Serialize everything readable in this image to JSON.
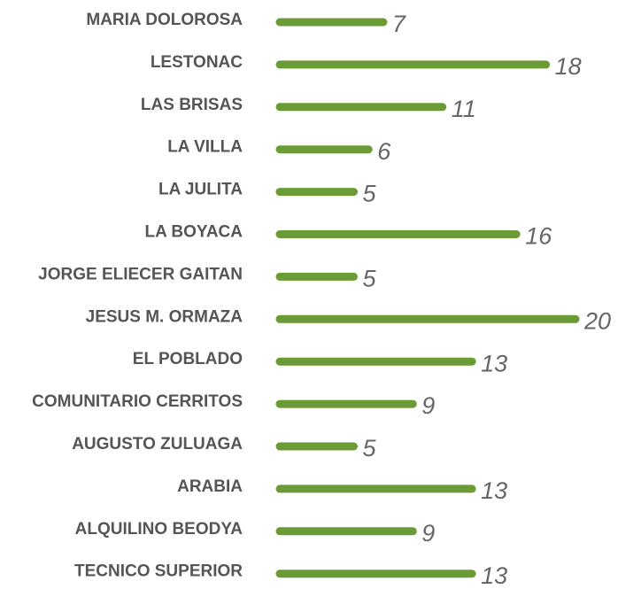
{
  "chart_data": {
    "type": "bar",
    "orientation": "horizontal",
    "color": "#6b9b37",
    "categories": [
      "MARIA DOLOROSA",
      "LESTONAC",
      "LAS BRISAS",
      "LA VILLA",
      "LA JULITA",
      "LA BOYACA",
      "JORGE ELIECER GAITAN",
      "JESUS M. ORMAZA",
      "EL POBLADO",
      "COMUNITARIO CERRITOS",
      "AUGUSTO ZULUAGA",
      "ARABIA",
      "ALQUILINO BEODYA",
      "TECNICO SUPERIOR"
    ],
    "values": [
      7,
      18,
      11,
      6,
      5,
      16,
      5,
      20,
      13,
      9,
      5,
      13,
      9,
      13
    ]
  }
}
